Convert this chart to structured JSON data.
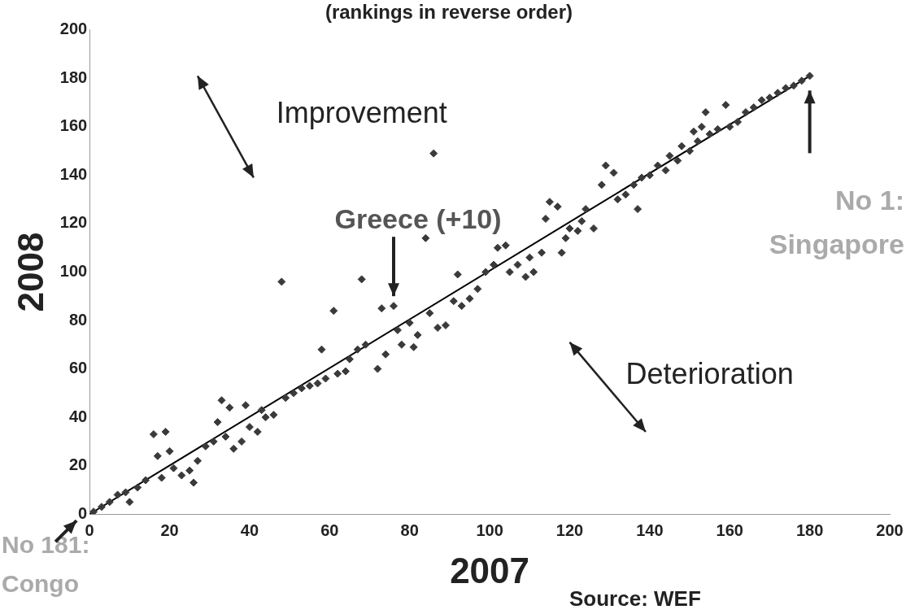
{
  "chart_data": {
    "type": "scatter",
    "title": "(rankings in reverse order)",
    "xlabel": "2007",
    "ylabel": "2008",
    "xlim": [
      0,
      200
    ],
    "ylim": [
      0,
      200
    ],
    "xticks": [
      0,
      20,
      40,
      60,
      80,
      100,
      120,
      140,
      160,
      180,
      200
    ],
    "yticks": [
      0,
      20,
      40,
      60,
      80,
      100,
      120,
      140,
      160,
      180,
      200
    ],
    "grid": false,
    "legend": false,
    "series": [
      {
        "color": "#3a3a3a",
        "marker": "diamond",
        "x": [
          1,
          3,
          5,
          7,
          9,
          10,
          12,
          14,
          16,
          17,
          18,
          19,
          20,
          21,
          23,
          25,
          26,
          27,
          29,
          31,
          32,
          33,
          34,
          35,
          36,
          38,
          39,
          40,
          42,
          43,
          44,
          46,
          48,
          49,
          51,
          53,
          55,
          57,
          58,
          59,
          61,
          62,
          64,
          65,
          67,
          68,
          69,
          72,
          73,
          74,
          76,
          77,
          78,
          80,
          81,
          82,
          84,
          85,
          86,
          87,
          89,
          91,
          92,
          93,
          95,
          97,
          99,
          101,
          102,
          104,
          105,
          107,
          109,
          110,
          111,
          113,
          114,
          115,
          117,
          118,
          119,
          120,
          122,
          123,
          124,
          126,
          128,
          129,
          131,
          132,
          134,
          136,
          137,
          138,
          140,
          142,
          144,
          145,
          147,
          148,
          150,
          151,
          152,
          153,
          154,
          155,
          157,
          159,
          160,
          162,
          164,
          166,
          168,
          170,
          172,
          174,
          176,
          178,
          180
        ],
        "values": [
          1,
          3,
          5,
          8,
          9,
          5,
          11,
          14,
          33,
          24,
          15,
          34,
          26,
          19,
          16,
          18,
          13,
          22,
          28,
          30,
          38,
          47,
          32,
          44,
          27,
          30,
          45,
          36,
          34,
          43,
          40,
          41,
          96,
          48,
          50,
          52,
          53,
          54,
          68,
          56,
          84,
          58,
          59,
          64,
          68,
          97,
          70,
          60,
          85,
          66,
          86,
          76,
          70,
          79,
          69,
          74,
          114,
          83,
          149,
          77,
          78,
          88,
          99,
          86,
          89,
          93,
          100,
          103,
          110,
          111,
          100,
          103,
          98,
          106,
          100,
          108,
          122,
          129,
          127,
          108,
          114,
          118,
          117,
          121,
          126,
          118,
          136,
          144,
          141,
          130,
          132,
          136,
          126,
          139,
          140,
          144,
          142,
          148,
          146,
          152,
          150,
          158,
          154,
          160,
          166,
          157,
          159,
          169,
          160,
          162,
          166,
          168,
          171,
          172,
          174,
          176,
          177,
          179,
          181
        ]
      },
      {
        "type": "line",
        "color": "#000000",
        "marker": "none",
        "line_style": "solid",
        "x": [
          0,
          180
        ],
        "values": [
          0,
          181
        ]
      }
    ],
    "annotations": [
      "Improvement",
      "Deterioration",
      {
        "text": "Greece (+10)",
        "x": 76,
        "y": 86
      },
      "No 1: Singapore",
      "No 181: Congo",
      "Source: WEF"
    ]
  }
}
